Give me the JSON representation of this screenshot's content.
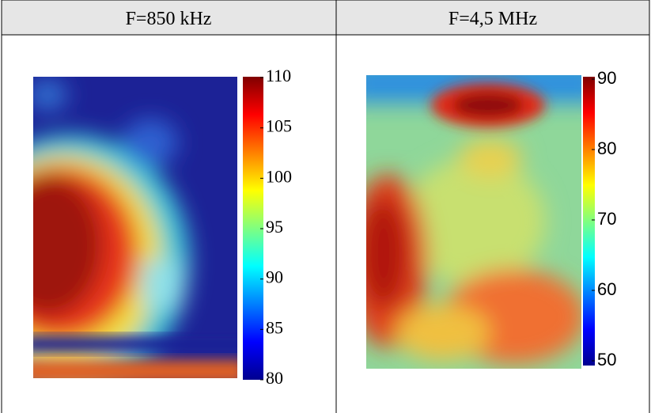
{
  "table": {
    "headers": [
      "F=850 kHz",
      "F=4,5 MHz"
    ]
  },
  "panels": [
    {
      "colorbar": {
        "ticks": [
          110,
          105,
          100,
          95,
          90,
          85,
          80
        ]
      }
    },
    {
      "colorbar": {
        "ticks": [
          90,
          80,
          70,
          60,
          50
        ]
      }
    }
  ]
}
